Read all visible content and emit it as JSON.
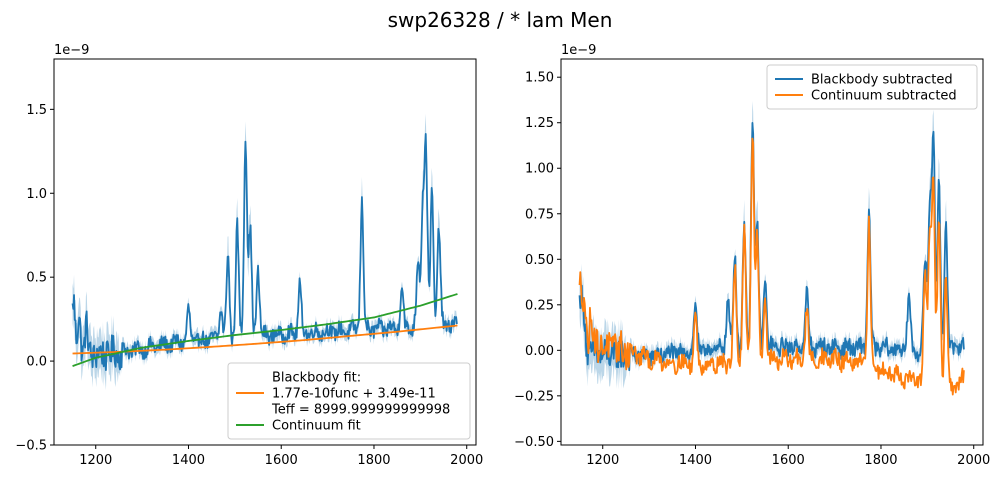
{
  "figure": {
    "suptitle": "swp26328 / * lam Men"
  },
  "colors": {
    "blue": "#1f77b4",
    "orange": "#ff7f0e",
    "green": "#2ca02c"
  },
  "chart_data": [
    {
      "type": "line",
      "offset_text": "1e−9",
      "xlim": [
        1110,
        2020
      ],
      "ylim": [
        -0.5,
        1.8
      ],
      "xticks": [
        1200,
        1400,
        1600,
        1800,
        2000
      ],
      "yticks": [
        -0.5,
        0.0,
        0.5,
        1.0,
        1.5
      ],
      "ytick_labels": [
        "−0.5",
        "0.0",
        "0.5",
        "1.0",
        "1.5"
      ],
      "grid": false,
      "legend": {
        "placement": "lower-right"
      },
      "series": [
        {
          "key": "observed",
          "color": "#1f77b4",
          "style": "noisy-spectrum-with-error-band",
          "x_range": [
            1150,
            1980
          ],
          "baseline": [
            [
              1150,
              0.03
            ],
            [
              1250,
              0.05
            ],
            [
              1400,
              0.12
            ],
            [
              1500,
              0.14
            ],
            [
              1650,
              0.17
            ],
            [
              1800,
              0.19
            ],
            [
              1900,
              0.2
            ],
            [
              1980,
              0.22
            ]
          ],
          "peaks": [
            [
              1152,
              0.35
            ],
            [
              1164,
              0.28
            ],
            [
              1180,
              0.2
            ],
            [
              1400,
              0.3
            ],
            [
              1470,
              0.32
            ],
            [
              1485,
              0.62
            ],
            [
              1505,
              0.8
            ],
            [
              1523,
              1.35
            ],
            [
              1533,
              0.78
            ],
            [
              1550,
              0.55
            ],
            [
              1640,
              0.45
            ],
            [
              1774,
              0.95
            ],
            [
              1860,
              0.45
            ],
            [
              1895,
              0.6
            ],
            [
              1905,
              0.9
            ],
            [
              1912,
              1.25
            ],
            [
              1925,
              1.0
            ],
            [
              1940,
              0.8
            ]
          ],
          "x": [
            1150,
            1160,
            1200,
            1300,
            1400,
            1500,
            1520,
            1525,
            1600,
            1775,
            1800,
            1912,
            1950,
            1980
          ],
          "y": [
            0.35,
            -0.1,
            0.05,
            0.08,
            0.25,
            0.2,
            0.9,
            1.35,
            0.2,
            0.95,
            0.2,
            1.25,
            0.6,
            0.25
          ]
        },
        {
          "name": "Blackbody fit:\n1.77e-10func + 3.49e-11\nTeff = 8999.999999999998",
          "color": "#ff7f0e",
          "x": [
            1150,
            1250,
            1350,
            1450,
            1550,
            1650,
            1750,
            1850,
            1980
          ],
          "y": [
            0.045,
            0.055,
            0.068,
            0.085,
            0.104,
            0.125,
            0.15,
            0.175,
            0.212
          ]
        },
        {
          "name": "Continuum fit",
          "color": "#2ca02c",
          "x": [
            1150,
            1200,
            1300,
            1400,
            1500,
            1600,
            1700,
            1800,
            1900,
            1980
          ],
          "y": [
            -0.03,
            0.02,
            0.08,
            0.12,
            0.155,
            0.185,
            0.22,
            0.26,
            0.33,
            0.4
          ]
        }
      ]
    },
    {
      "type": "line",
      "offset_text": "1e−9",
      "xlim": [
        1110,
        2020
      ],
      "ylim": [
        -0.52,
        1.6
      ],
      "xticks": [
        1200,
        1400,
        1600,
        1800,
        2000
      ],
      "yticks": [
        -0.5,
        -0.25,
        0.0,
        0.25,
        0.5,
        0.75,
        1.0,
        1.25,
        1.5
      ],
      "ytick_labels": [
        "−0.50",
        "−0.25",
        "0.00",
        "0.25",
        "0.50",
        "0.75",
        "1.00",
        "1.25",
        "1.50"
      ],
      "grid": false,
      "legend": {
        "placement": "top-right"
      },
      "series": [
        {
          "name": "Blackbody subtracted",
          "color": "#1f77b4",
          "style": "noisy-spectrum-with-error-band",
          "x_range": [
            1150,
            1980
          ],
          "baseline": [
            [
              1150,
              -0.02
            ],
            [
              1300,
              -0.03
            ],
            [
              1400,
              0.0
            ],
            [
              1600,
              0.02
            ],
            [
              1800,
              0.01
            ],
            [
              1900,
              0.0
            ],
            [
              1980,
              0.02
            ]
          ],
          "peaks": [
            [
              1152,
              0.3
            ],
            [
              1160,
              0.2
            ],
            [
              1400,
              0.25
            ],
            [
              1470,
              0.3
            ],
            [
              1485,
              0.52
            ],
            [
              1505,
              0.7
            ],
            [
              1523,
              1.26
            ],
            [
              1533,
              0.7
            ],
            [
              1550,
              0.4
            ],
            [
              1640,
              0.32
            ],
            [
              1774,
              0.78
            ],
            [
              1860,
              0.3
            ],
            [
              1895,
              0.5
            ],
            [
              1905,
              0.8
            ],
            [
              1913,
              1.2
            ],
            [
              1925,
              0.9
            ],
            [
              1940,
              0.7
            ]
          ],
          "x": [
            1150,
            1200,
            1300,
            1400,
            1500,
            1523,
            1600,
            1774,
            1800,
            1913,
            1950,
            1980
          ],
          "y": [
            0.3,
            -0.05,
            -0.03,
            0.25,
            0.5,
            1.26,
            0.05,
            0.78,
            0.02,
            1.2,
            0.3,
            0.05
          ]
        },
        {
          "name": "Continuum subtracted",
          "color": "#ff7f0e",
          "style": "noisy-spectrum",
          "x_range": [
            1150,
            1980
          ],
          "baseline": [
            [
              1150,
              0.05
            ],
            [
              1250,
              0.0
            ],
            [
              1300,
              -0.05
            ],
            [
              1400,
              -0.08
            ],
            [
              1500,
              -0.06
            ],
            [
              1600,
              -0.05
            ],
            [
              1700,
              -0.05
            ],
            [
              1800,
              -0.1
            ],
            [
              1850,
              -0.15
            ],
            [
              1900,
              -0.18
            ],
            [
              1950,
              -0.22
            ],
            [
              1980,
              -0.15
            ]
          ],
          "peaks": [
            [
              1152,
              0.35
            ],
            [
              1160,
              0.28
            ],
            [
              1175,
              0.2
            ],
            [
              1400,
              0.18
            ],
            [
              1485,
              0.45
            ],
            [
              1505,
              0.65
            ],
            [
              1523,
              1.22
            ],
            [
              1533,
              0.62
            ],
            [
              1550,
              0.3
            ],
            [
              1640,
              0.22
            ],
            [
              1774,
              0.7
            ],
            [
              1895,
              0.4
            ],
            [
              1905,
              0.65
            ],
            [
              1913,
              0.92
            ],
            [
              1925,
              0.75
            ],
            [
              1940,
              0.4
            ]
          ],
          "x": [
            1150,
            1200,
            1300,
            1400,
            1523,
            1600,
            1774,
            1850,
            1913,
            1960,
            1980
          ],
          "y": [
            0.35,
            0.0,
            -0.05,
            0.18,
            1.22,
            -0.05,
            0.7,
            -0.15,
            0.92,
            -0.28,
            -0.15
          ]
        }
      ]
    }
  ]
}
